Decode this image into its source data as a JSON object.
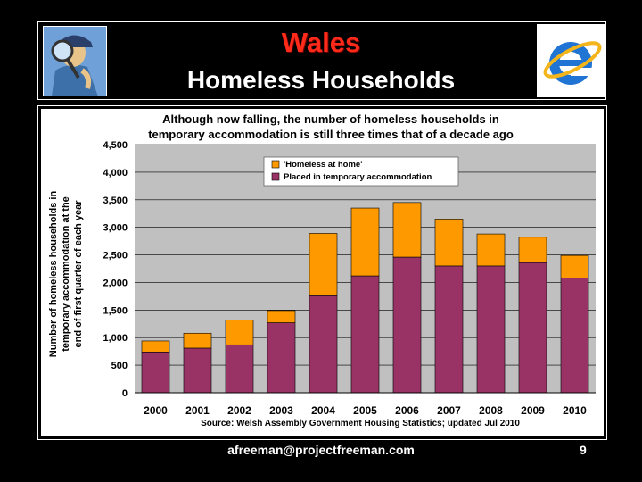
{
  "slide": {
    "title": "Wales",
    "subtitle": "Homeless Households",
    "footer_email": "afreeman@projectfreeman.com",
    "page_number": "9"
  },
  "colors": {
    "title_red": "#ff2a1a",
    "placed": "#993366",
    "home": "#ff9900",
    "plot_bg": "#c0c0c0"
  },
  "chart_data": {
    "type": "bar",
    "stacked": true,
    "title_lines": [
      "Although now falling, the number of homeless households in",
      "temporary accommodation is still three times that of a decade ago"
    ],
    "ylabel_lines": [
      "Number of homeless households in",
      "temporary accommodation at the",
      "end of first quarter of each year"
    ],
    "source": "Source: Welsh Assembly Government Housing Statistics; updated Jul 2010",
    "categories": [
      "2000",
      "2001",
      "2002",
      "2003",
      "2004",
      "2005",
      "2006",
      "2007",
      "2008",
      "2009",
      "2010"
    ],
    "series": [
      {
        "name": "Placed in temporary accommodation",
        "values": [
          740,
          810,
          870,
          1270,
          1760,
          2120,
          2460,
          2300,
          2300,
          2360,
          2080
        ]
      },
      {
        "name": "'Homeless at home'",
        "values": [
          200,
          270,
          450,
          220,
          1130,
          1230,
          990,
          850,
          580,
          460,
          410
        ]
      }
    ],
    "ylim": [
      0,
      4500
    ],
    "yticks": [
      0,
      500,
      1000,
      1500,
      2000,
      2500,
      3000,
      3500,
      4000,
      4500
    ],
    "ytick_labels": [
      "0",
      "500",
      "1,000",
      "1,500",
      "2,000",
      "2,500",
      "3,000",
      "3,500",
      "4,000",
      "4,500"
    ],
    "legend_position": "top-left"
  }
}
